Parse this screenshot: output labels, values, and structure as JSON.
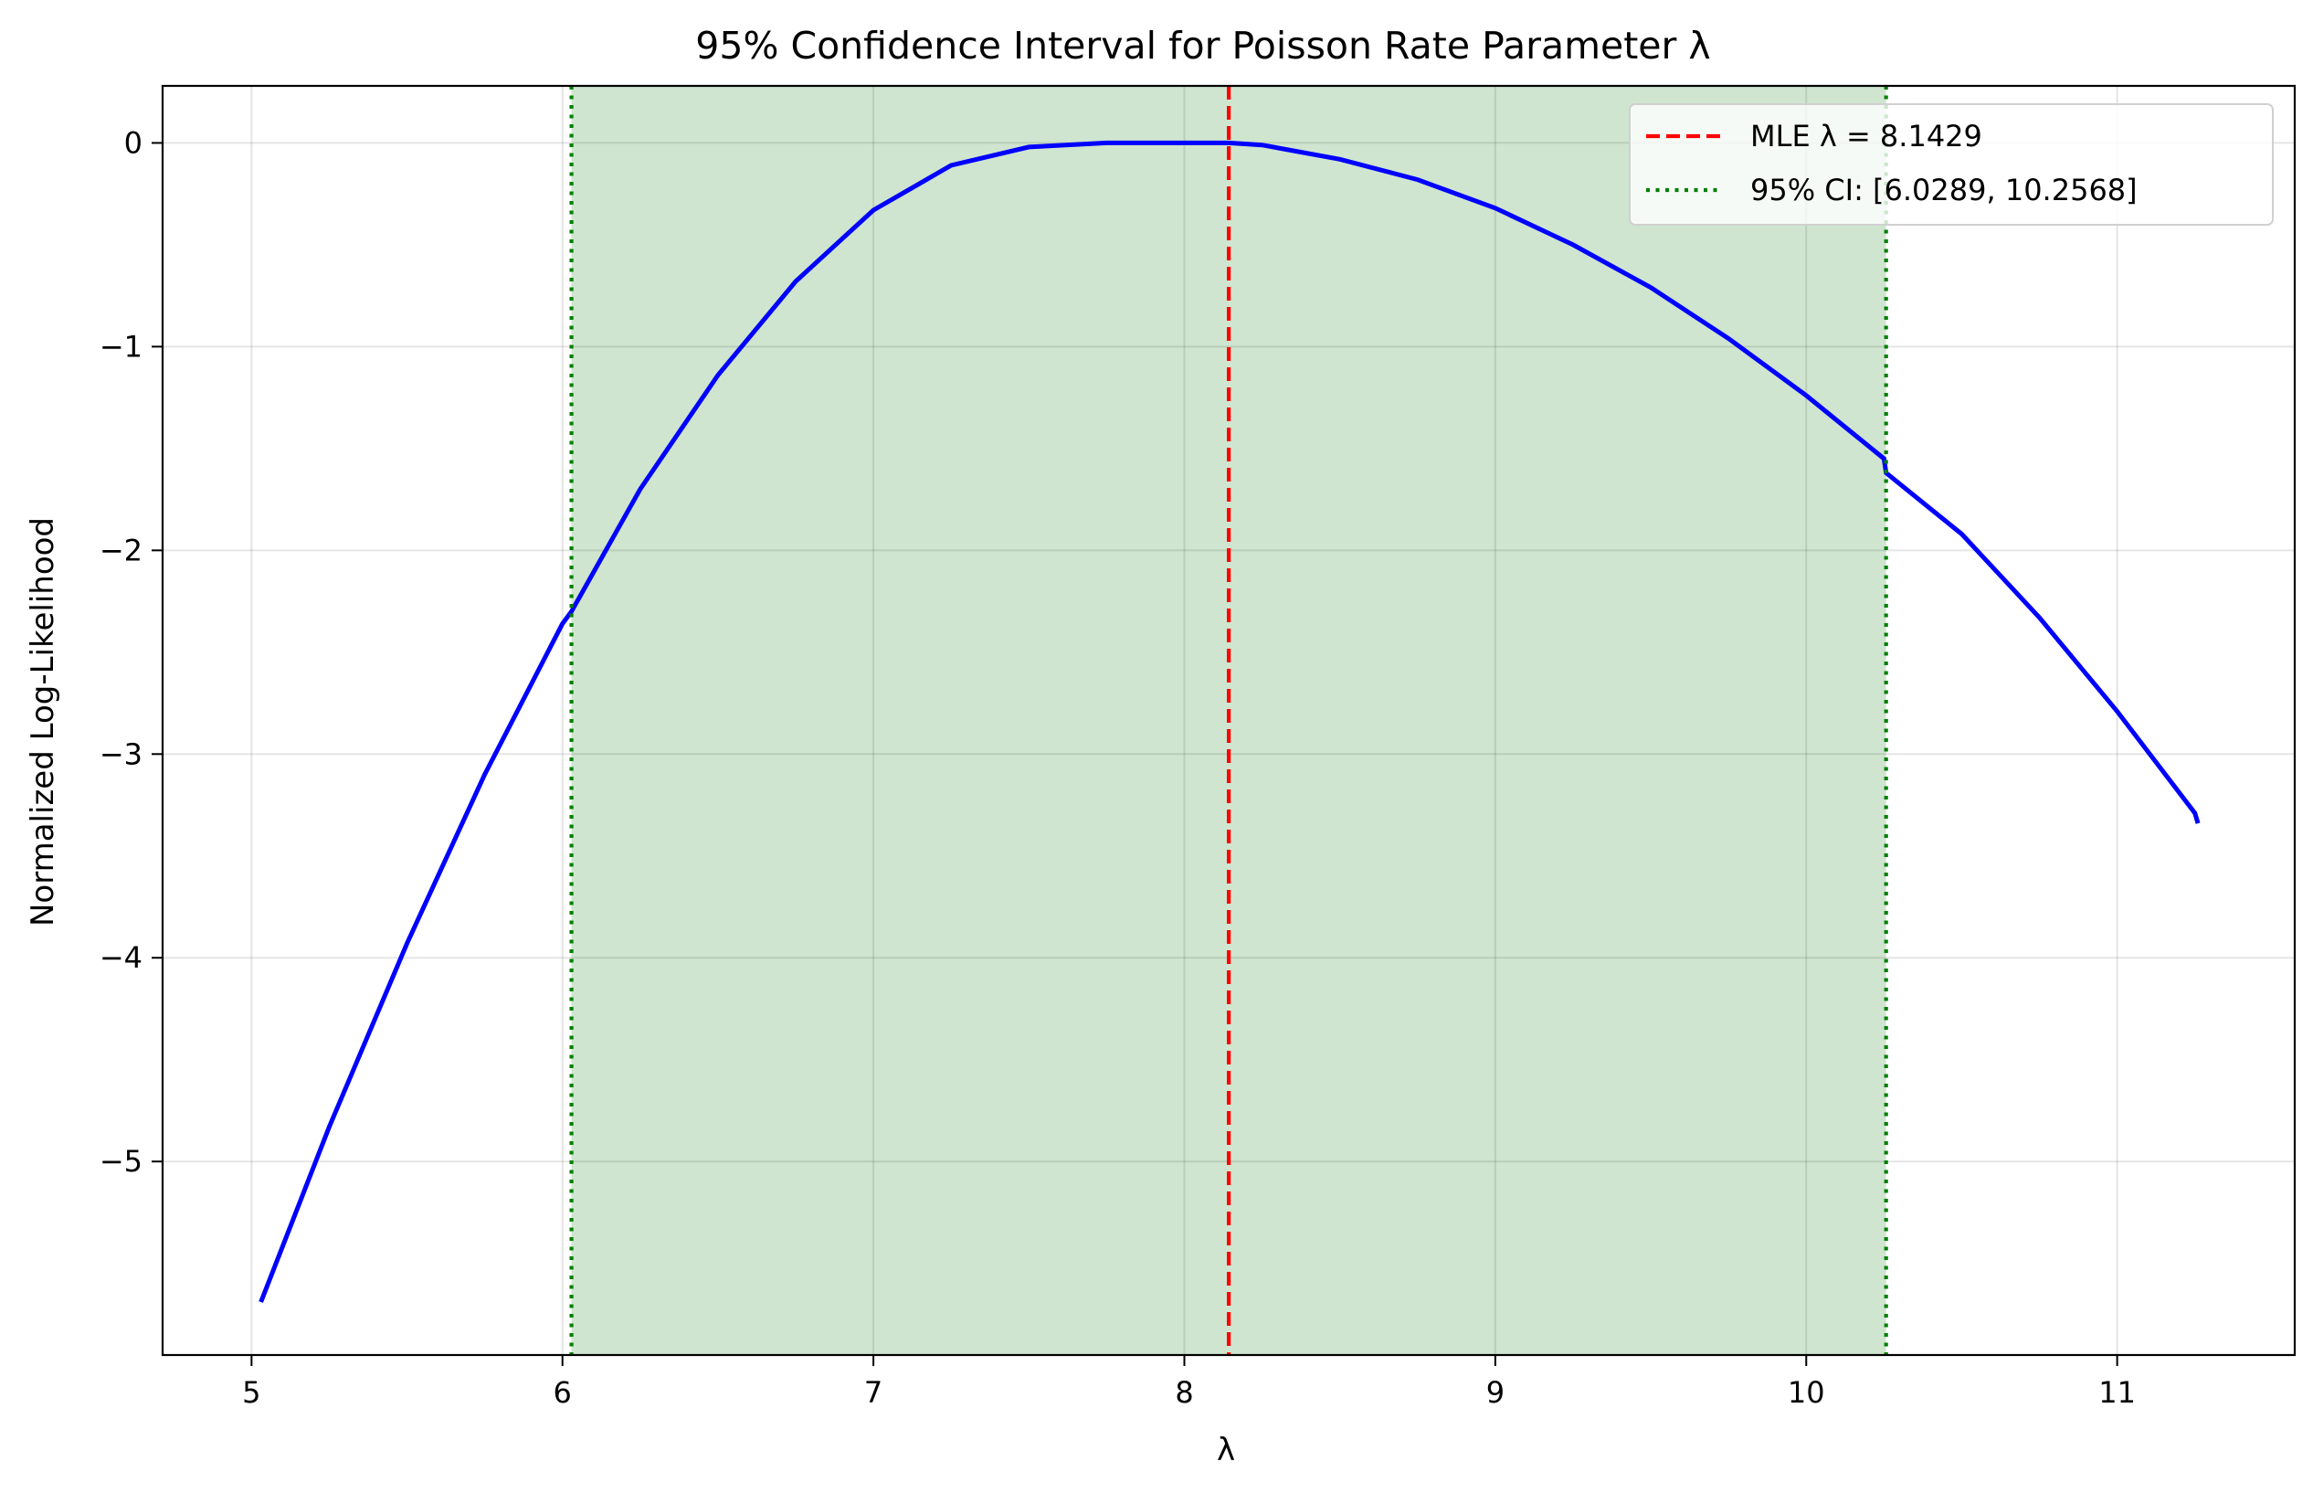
{
  "chart_data": {
    "type": "line",
    "title": "95% Confidence Interval for Poisson Rate Parameter λ",
    "xlabel": "λ",
    "ylabel": "Normalized Log-Likelihood",
    "xlim": [
      4.714,
      11.571
    ],
    "ylim": [
      -5.95,
      0.28
    ],
    "x_ticks": [
      5,
      6,
      7,
      8,
      9,
      10,
      11
    ],
    "x_tick_labels": [
      "5",
      "6",
      "7",
      "8",
      "9",
      "10",
      "11"
    ],
    "y_ticks": [
      0,
      -1,
      -2,
      -3,
      -4,
      -5
    ],
    "y_tick_labels": [
      "0",
      "−1",
      "−2",
      "−3",
      "−4",
      "−5"
    ],
    "grid": true,
    "series": [
      {
        "name": "",
        "color": "#0000ff",
        "x": [
          5.03,
          5.25,
          5.5,
          5.75,
          6.0,
          6.0289,
          6.25,
          6.5,
          6.75,
          7.0,
          7.25,
          7.5,
          7.75,
          8.0,
          8.1429,
          8.25,
          8.5,
          8.75,
          9.0,
          9.25,
          9.5,
          9.75,
          10.0,
          10.25,
          10.2568,
          10.5,
          10.75,
          11.0,
          11.25,
          11.26
        ],
        "y": [
          -5.69,
          -4.83,
          -3.93,
          -3.1,
          -2.36,
          -2.3,
          -1.7,
          -1.14,
          -0.68,
          -0.33,
          -0.11,
          -0.02,
          0.0,
          0.0,
          0.0,
          -0.01,
          -0.08,
          -0.18,
          -0.32,
          -0.5,
          -0.71,
          -0.96,
          -1.24,
          -1.55,
          -1.62,
          -1.92,
          -2.33,
          -2.79,
          -3.29,
          -3.34
        ]
      }
    ],
    "mle": {
      "value": 8.1429,
      "color": "#ff0000",
      "legend": "MLE λ = 8.1429"
    },
    "ci": {
      "lower": 6.0289,
      "upper": 10.2568,
      "line_color": "#008000",
      "fill_color": "#cfe5cf",
      "legend": "95% CI: [6.0289, 10.2568]"
    },
    "legend_position": "top-right"
  }
}
